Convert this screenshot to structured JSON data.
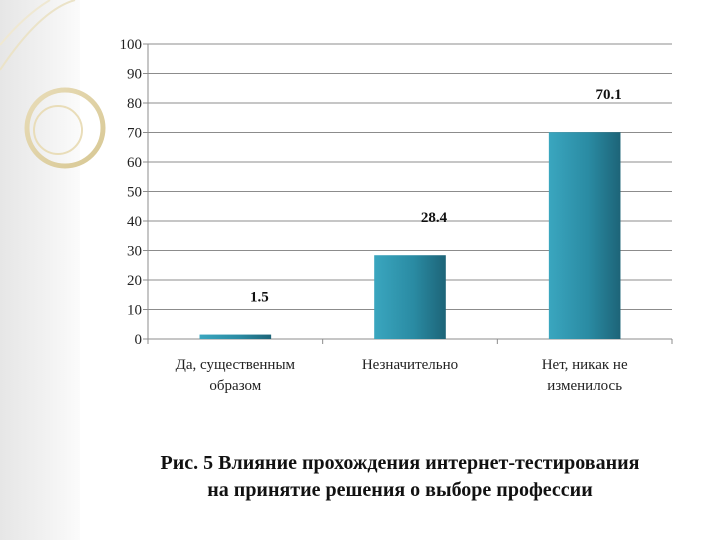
{
  "chart_data": {
    "type": "bar",
    "categories": [
      [
        "Да, существенным",
        "образом"
      ],
      [
        "Незначительно"
      ],
      [
        "Нет, никак не",
        "изменилось"
      ]
    ],
    "values": [
      1.5,
      28.4,
      70.1
    ],
    "data_labels": [
      "1.5",
      "28.4",
      "70.1"
    ],
    "ylim": [
      0,
      100
    ],
    "yticks": [
      0,
      10,
      20,
      30,
      40,
      50,
      60,
      70,
      80,
      90,
      100
    ],
    "grid": true,
    "bar_color": "#2a8ba3"
  },
  "caption": {
    "line1": "Рис. 5 Влияние прохождения интернет-тестирования",
    "line2": "на принятие решения о выборе профессии"
  }
}
